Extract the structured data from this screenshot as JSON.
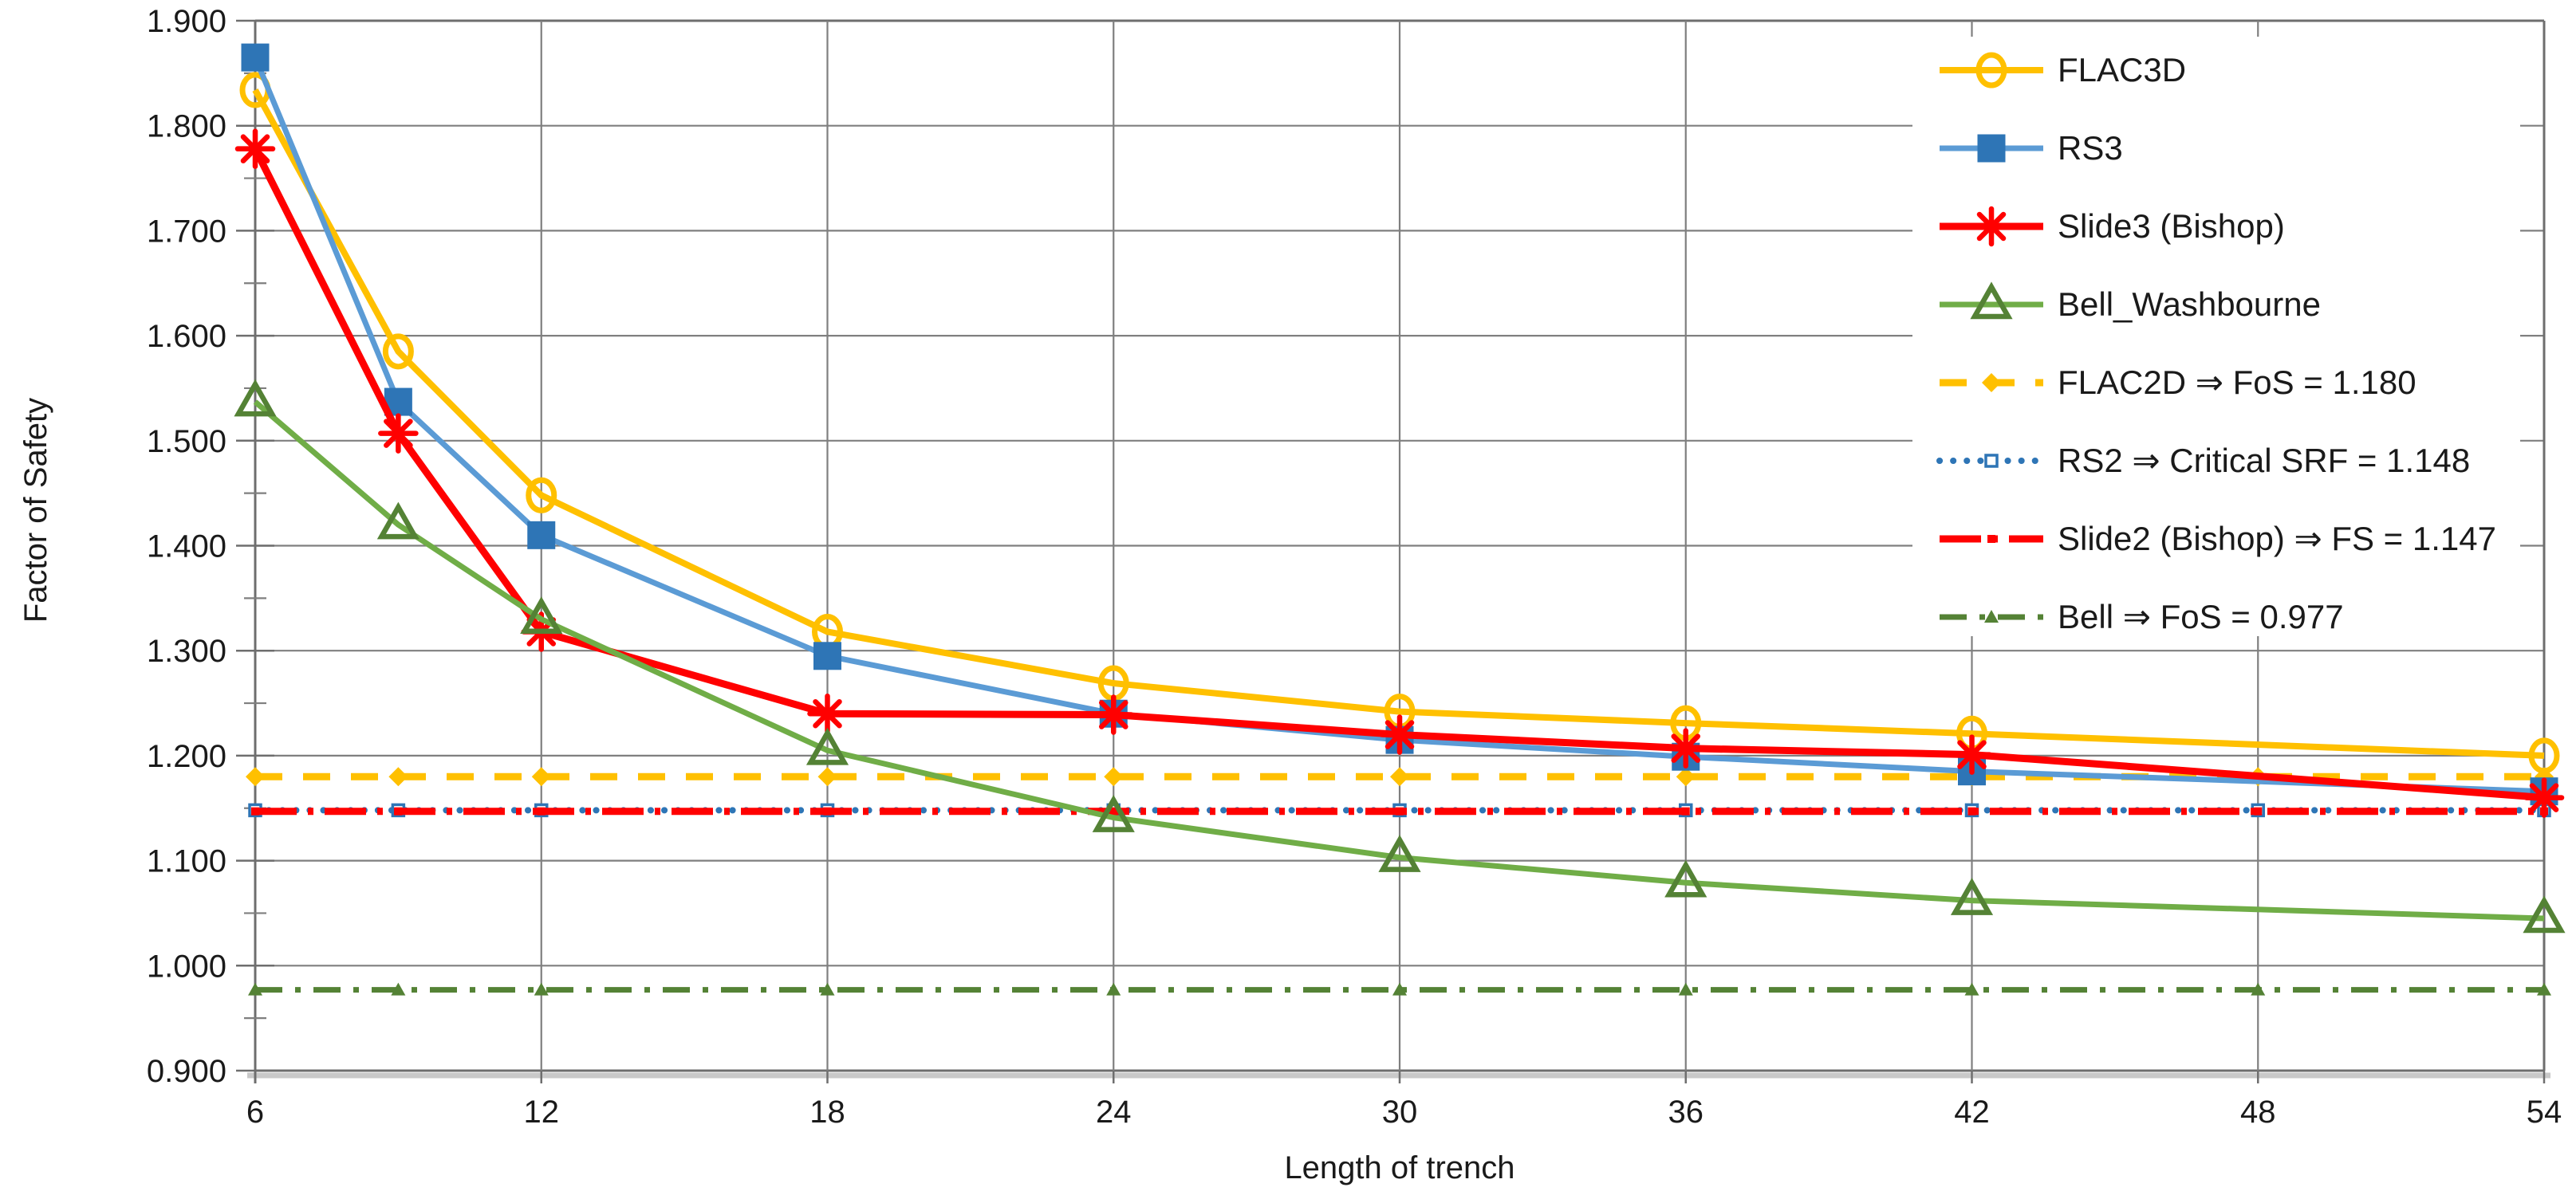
{
  "chart_data": {
    "type": "line",
    "title": "",
    "xlabel": "Length of trench",
    "ylabel": "Factor of Safety",
    "xlim": [
      6,
      54
    ],
    "ylim": [
      0.9,
      1.9
    ],
    "x_ticks": [
      6,
      12,
      18,
      24,
      30,
      36,
      42,
      48,
      54
    ],
    "y_ticks": [
      0.9,
      1.0,
      1.1,
      1.2,
      1.3,
      1.4,
      1.5,
      1.6,
      1.7,
      1.8,
      1.9
    ],
    "y_minor_ticks": [
      0.95,
      1.05,
      1.15,
      1.25,
      1.35,
      1.45,
      1.55,
      1.65,
      1.75,
      1.85
    ],
    "grid": true,
    "legend_position": "top-right",
    "x": [
      6,
      9,
      12,
      18,
      24,
      30,
      36,
      42,
      54
    ],
    "series": [
      {
        "name": "FLAC3D",
        "legend_label": "FLAC3D",
        "marker": "circle",
        "color": "#FFC000",
        "marker_color": "#FFC000",
        "line_width": 8,
        "values": [
          1.834,
          1.585,
          1.448,
          1.318,
          1.269,
          1.242,
          1.231,
          1.221,
          1.2
        ]
      },
      {
        "name": "RS3",
        "legend_label": "RS3",
        "marker": "square",
        "color": "#5B9BD5",
        "marker_color": "#2E75B6",
        "line_width": 7,
        "values": [
          1.865,
          1.537,
          1.41,
          1.295,
          1.24,
          1.215,
          1.199,
          1.185,
          1.166
        ]
      },
      {
        "name": "Slide3 (Bishop)",
        "legend_label": "Slide3 (Bishop)",
        "marker": "asterisk",
        "color": "#FF0000",
        "marker_color": "#FF0000",
        "line_width": 9,
        "values": [
          1.778,
          1.507,
          1.318,
          1.24,
          1.239,
          1.22,
          1.207,
          1.201,
          1.16
        ]
      },
      {
        "name": "Bell_Washbourne",
        "legend_label": "Bell_Washbourne",
        "marker": "triangle-open",
        "color": "#70AD47",
        "marker_color": "#548235",
        "line_width": 7,
        "values": [
          1.537,
          1.42,
          1.33,
          1.205,
          1.141,
          1.103,
          1.079,
          1.062,
          1.045
        ]
      }
    ],
    "constant_series": [
      {
        "name": "FLAC2D",
        "legend_label": "FLAC2D  ⇒ FoS = 1.180",
        "value": 1.18,
        "color": "#FFC000",
        "dash": "34 26",
        "line_width": 9,
        "marker": "diamond-small"
      },
      {
        "name": "RS2",
        "legend_label": "RS2  ⇒ Critical SRF = 1.148",
        "value": 1.148,
        "color": "#2E75B6",
        "dash": "0.1 17",
        "line_width": 8,
        "marker": "square-open-small",
        "linecap": "round"
      },
      {
        "name": "Slide2 (Bishop)",
        "legend_label": "Slide2 (Bishop)  ⇒ FS = 1.147",
        "value": 1.147,
        "color": "#FF0000",
        "dash": "52 14 7 14",
        "line_width": 9,
        "marker": "dot-small"
      },
      {
        "name": "Bell",
        "legend_label": "Bell  ⇒ FoS = 0.977",
        "value": 0.977,
        "color": "#548235",
        "dash": "34 16 7 16",
        "line_width": 7,
        "marker": "triangle-small"
      }
    ],
    "marker_x_constant_lines": [
      6,
      9,
      12,
      18,
      24,
      30,
      36,
      42,
      48,
      54
    ],
    "colors": {
      "grid": "#7F7F7F",
      "border": "#6E6E6E",
      "axis_light": "#C9C9C9",
      "text": "#1a1a1a",
      "legend_background": "#ffffff"
    }
  }
}
